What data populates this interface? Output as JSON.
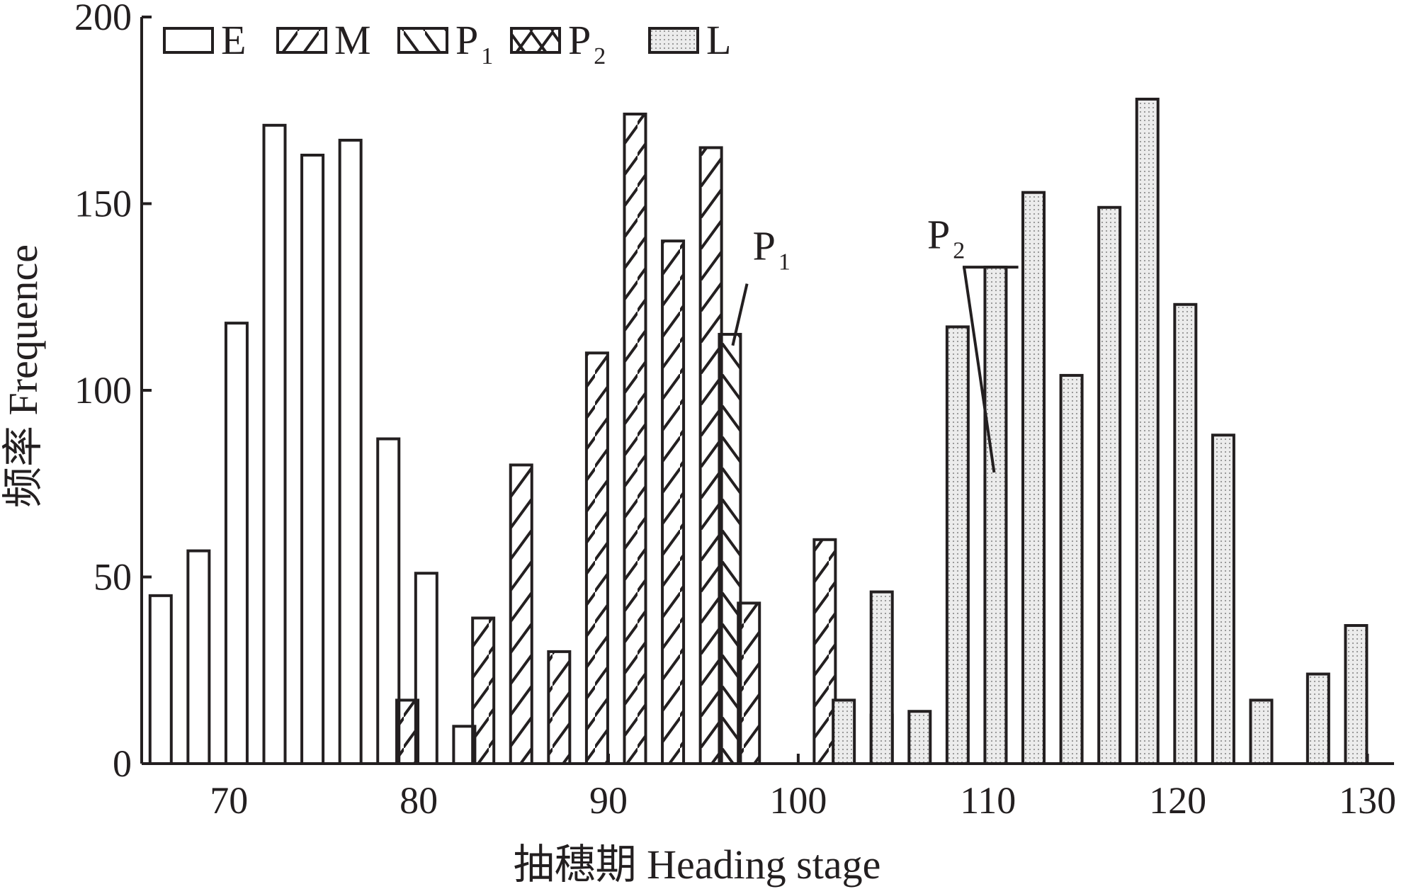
{
  "chart_data": {
    "type": "bar",
    "title": "",
    "xlabel": "抽穗期 Heading stage",
    "ylabel": "频率 Frequence",
    "xlim": [
      65.4,
      131.4
    ],
    "ylim": [
      0,
      200
    ],
    "x_ticks": [
      "70",
      "80",
      "90",
      "100",
      "110",
      "120",
      "130"
    ],
    "y_ticks": [
      "0",
      "50",
      "100",
      "150",
      "200"
    ],
    "grid": false,
    "legend_position": "top-left",
    "series": [
      {
        "name": "E",
        "sub": "",
        "pattern": "none",
        "points": [
          {
            "x": 66.4,
            "y": 45
          },
          {
            "x": 68.4,
            "y": 57
          },
          {
            "x": 70.4,
            "y": 118
          },
          {
            "x": 72.4,
            "y": 171
          },
          {
            "x": 74.4,
            "y": 163
          },
          {
            "x": 76.4,
            "y": 167
          },
          {
            "x": 78.4,
            "y": 87
          },
          {
            "x": 80.4,
            "y": 51
          },
          {
            "x": 82.4,
            "y": 10
          }
        ]
      },
      {
        "name": "M",
        "sub": "",
        "pattern": "diag-right",
        "points": [
          {
            "x": 79.4,
            "y": 17
          },
          {
            "x": 83.4,
            "y": 39
          },
          {
            "x": 85.4,
            "y": 80
          },
          {
            "x": 87.4,
            "y": 30
          },
          {
            "x": 89.4,
            "y": 110
          },
          {
            "x": 91.4,
            "y": 174
          },
          {
            "x": 93.4,
            "y": 140
          },
          {
            "x": 95.4,
            "y": 165
          },
          {
            "x": 97.4,
            "y": 43
          },
          {
            "x": 101.4,
            "y": 60
          },
          {
            "x": 104.4,
            "y": 13
          }
        ]
      },
      {
        "name": "P",
        "sub": "1",
        "pattern": "diag-left",
        "points": [
          {
            "x": 96.4,
            "y": 115
          }
        ]
      },
      {
        "name": "P",
        "sub": "2",
        "pattern": "cross",
        "points": [
          {
            "x": 110.4,
            "y": 77
          }
        ]
      },
      {
        "name": "L",
        "sub": "",
        "pattern": "dots",
        "points": [
          {
            "x": 102.4,
            "y": 17
          },
          {
            "x": 104.4,
            "y": 46
          },
          {
            "x": 106.4,
            "y": 14
          },
          {
            "x": 108.4,
            "y": 117
          },
          {
            "x": 110.4,
            "y": 133
          },
          {
            "x": 112.4,
            "y": 153
          },
          {
            "x": 114.4,
            "y": 104
          },
          {
            "x": 116.4,
            "y": 149
          },
          {
            "x": 118.4,
            "y": 178
          },
          {
            "x": 120.4,
            "y": 123
          },
          {
            "x": 122.4,
            "y": 88
          },
          {
            "x": 124.4,
            "y": 17
          },
          {
            "x": 127.4,
            "y": 24
          },
          {
            "x": 129.4,
            "y": 37
          }
        ]
      }
    ],
    "annotations": [
      {
        "text": "P",
        "sub": "1",
        "x": 97.6,
        "y": 135
      },
      {
        "text": "P",
        "sub": "2",
        "x": 106.8,
        "y": 138
      }
    ],
    "colors": {
      "ink": "#231f20",
      "dot_fill": "#e6e6e6",
      "dot": "#9a9a9a"
    }
  }
}
